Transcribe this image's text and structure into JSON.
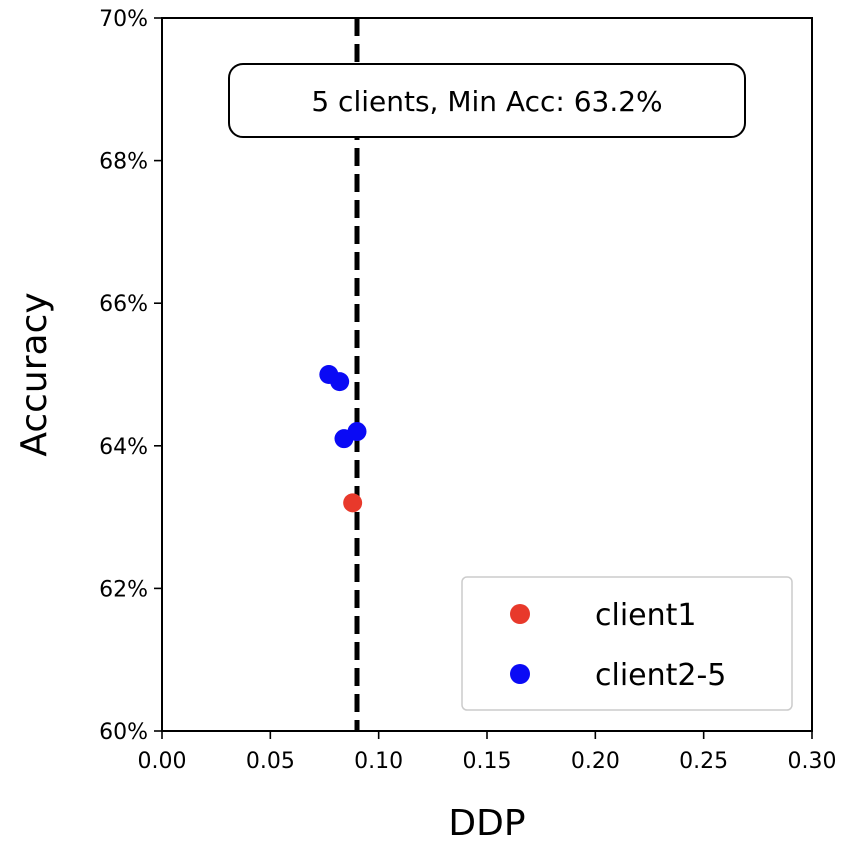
{
  "chart_data": {
    "type": "scatter",
    "title": "",
    "xlabel": "DDP",
    "ylabel": "Accuracy",
    "xlim": [
      0.0,
      0.3
    ],
    "ylim": [
      60,
      70
    ],
    "x_ticks": [
      0.0,
      0.05,
      0.1,
      0.15,
      0.2,
      0.25,
      0.3
    ],
    "x_tick_labels": [
      "0.00",
      "0.05",
      "0.10",
      "0.15",
      "0.20",
      "0.25",
      "0.30"
    ],
    "y_ticks": [
      60,
      62,
      64,
      66,
      68,
      70
    ],
    "y_tick_labels": [
      "60%",
      "62%",
      "64%",
      "66%",
      "68%",
      "70%"
    ],
    "grid": false,
    "legend_position": "lower-right",
    "series": [
      {
        "name": "client1",
        "color": "#e8392b",
        "points": [
          {
            "x": 0.088,
            "y": 63.2
          }
        ]
      },
      {
        "name": "client2-5",
        "color": "#0a0af5",
        "points": [
          {
            "x": 0.077,
            "y": 65.0
          },
          {
            "x": 0.082,
            "y": 64.9
          },
          {
            "x": 0.084,
            "y": 64.1
          },
          {
            "x": 0.09,
            "y": 64.2
          }
        ]
      }
    ],
    "reference_line": {
      "orientation": "vertical",
      "x": 0.09,
      "style": "dashed",
      "color": "#000000"
    },
    "annotation": {
      "text": "5 clients, Min Acc: 63.2%",
      "position": "top-center"
    }
  }
}
